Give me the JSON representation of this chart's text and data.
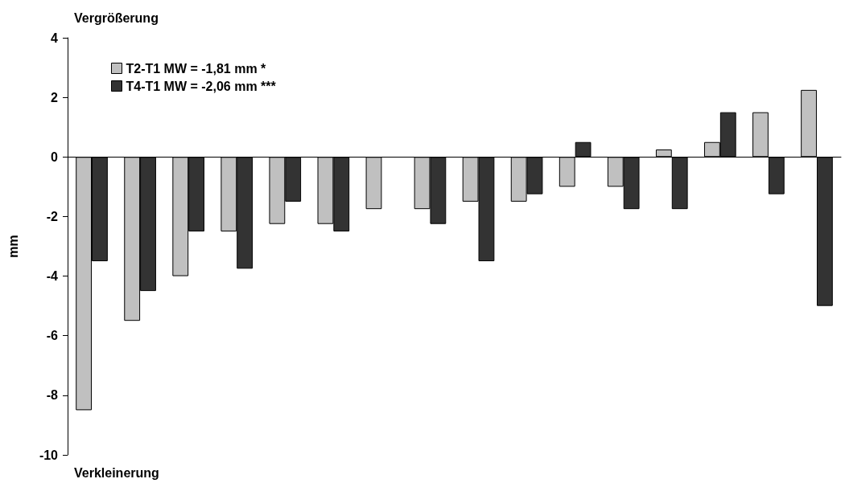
{
  "chart_data": {
    "type": "bar",
    "ylabel": "mm",
    "annotations": [
      "Vergrößerung",
      "Verkleinerung"
    ],
    "categories": [
      null,
      null,
      null,
      null,
      null,
      null,
      null,
      null,
      null,
      null,
      null,
      null,
      null,
      null,
      null,
      null
    ],
    "series": [
      {
        "name": "T2-T1 MW = -1,81 mm *",
        "color": "#c0c0c0",
        "values": [
          -8.5,
          -5.5,
          -4,
          -2.5,
          -2.25,
          -2.25,
          -1.75,
          -1.75,
          -1.5,
          -1.5,
          -1,
          -1,
          0.25,
          0.5,
          1.5,
          2.25
        ]
      },
      {
        "name": "T4-T1 MW = -2,06 mm ***",
        "color": "#333333",
        "values": [
          -3.5,
          -4.5,
          -2.5,
          -3.75,
          -1.5,
          -2.5,
          null,
          -2.25,
          -3.5,
          -1.25,
          0.5,
          -1.75,
          -1.75,
          1.5,
          -1.25,
          -5
        ]
      }
    ],
    "ylim": [
      -10,
      4
    ],
    "yticks": [
      -10,
      -8,
      -6,
      -4,
      -2,
      0,
      2,
      4
    ],
    "legend": "top left"
  }
}
